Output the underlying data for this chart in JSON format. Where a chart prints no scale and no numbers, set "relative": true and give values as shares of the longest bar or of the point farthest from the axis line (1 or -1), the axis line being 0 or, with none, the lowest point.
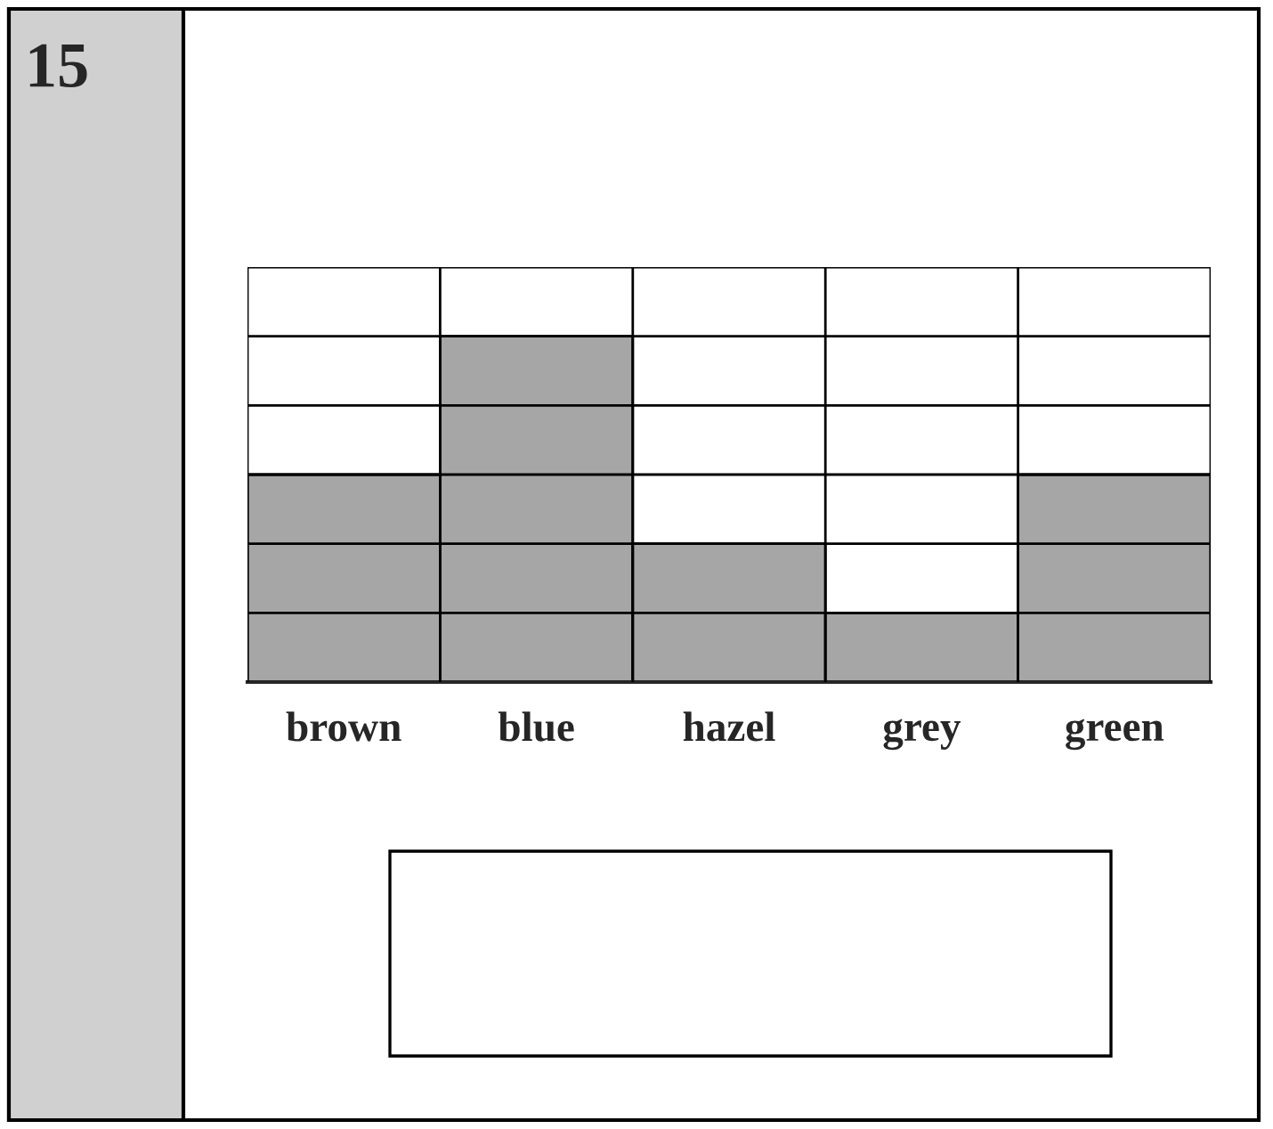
{
  "chart_data": {
    "type": "bar",
    "relative": true,
    "categories": [
      "brown",
      "blue",
      "hazel",
      "grey",
      "green"
    ],
    "values": [
      0.6,
      1,
      0.4,
      0.2,
      0.6
    ],
    "color": "#a6a6a6",
    "grid": true,
    "annotations": [
      "15"
    ]
  }
}
